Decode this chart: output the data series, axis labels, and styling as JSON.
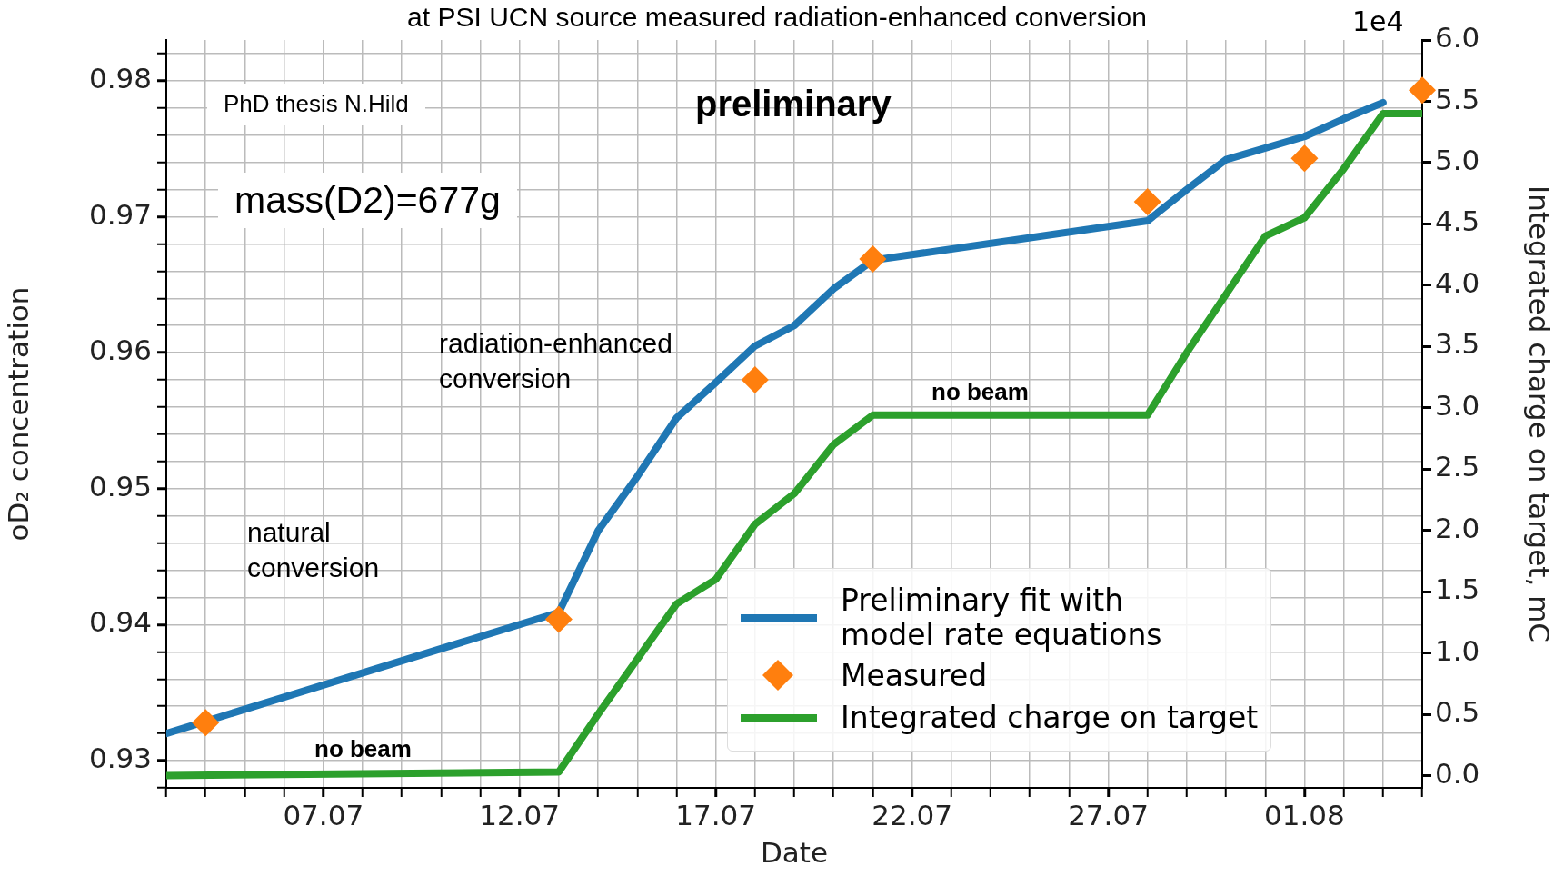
{
  "chart_data": {
    "type": "line",
    "title": "at PSI UCN source measured radiation-enhanced conversion",
    "xlabel": "Date",
    "ylabel": "oD₂ concentration",
    "y2label": "Integrated charge on target, mC",
    "xlim": [
      "--07-03",
      "--08-04"
    ],
    "xticks": [
      {
        "value": "--07-03",
        "label": null
      },
      {
        "value": "--07-04",
        "label": null
      },
      {
        "value": "--07-05",
        "label": null
      },
      {
        "value": "--07-06",
        "label": null
      },
      {
        "value": "--07-07",
        "label": "07.07"
      },
      {
        "value": "--07-08",
        "label": null
      },
      {
        "value": "--07-09",
        "label": null
      },
      {
        "value": "--07-10",
        "label": null
      },
      {
        "value": "--07-11",
        "label": null
      },
      {
        "value": "--07-12",
        "label": "12.07"
      },
      {
        "value": "--07-13",
        "label": null
      },
      {
        "value": "--07-14",
        "label": null
      },
      {
        "value": "--07-15",
        "label": null
      },
      {
        "value": "--07-16",
        "label": null
      },
      {
        "value": "--07-17",
        "label": "17.07"
      },
      {
        "value": "--07-18",
        "label": null
      },
      {
        "value": "--07-19",
        "label": null
      },
      {
        "value": "--07-20",
        "label": null
      },
      {
        "value": "--07-21",
        "label": null
      },
      {
        "value": "--07-22",
        "label": "22.07"
      },
      {
        "value": "--07-23",
        "label": null
      },
      {
        "value": "--07-24",
        "label": null
      },
      {
        "value": "--07-25",
        "label": null
      },
      {
        "value": "--07-26",
        "label": null
      },
      {
        "value": "--07-27",
        "label": "27.07"
      },
      {
        "value": "--07-28",
        "label": null
      },
      {
        "value": "--07-29",
        "label": null
      },
      {
        "value": "--07-30",
        "label": null
      },
      {
        "value": "--07-31",
        "label": null
      },
      {
        "value": "--08-01",
        "label": "01.08"
      },
      {
        "value": "--08-02",
        "label": null
      },
      {
        "value": "--08-03",
        "label": null
      },
      {
        "value": "--08-04",
        "label": null
      }
    ],
    "ylim": [
      0.928,
      0.983
    ],
    "yticks": [
      {
        "value": 0.928,
        "label": null
      },
      0.93,
      {
        "value": 0.932,
        "label": null
      },
      {
        "value": 0.934,
        "label": null
      },
      {
        "value": 0.936,
        "label": null
      },
      {
        "value": 0.938,
        "label": null
      },
      0.94,
      {
        "value": 0.942,
        "label": null
      },
      {
        "value": 0.944,
        "label": null
      },
      {
        "value": 0.946,
        "label": null
      },
      {
        "value": 0.948,
        "label": null
      },
      0.95,
      {
        "value": 0.952,
        "label": null
      },
      {
        "value": 0.954,
        "label": null
      },
      {
        "value": 0.956,
        "label": null
      },
      {
        "value": 0.958,
        "label": null
      },
      0.96,
      {
        "value": 0.962,
        "label": null
      },
      {
        "value": 0.964,
        "label": null
      },
      {
        "value": 0.966,
        "label": null
      },
      {
        "value": 0.968,
        "label": null
      },
      0.97,
      {
        "value": 0.972,
        "label": null
      },
      {
        "value": 0.974,
        "label": null
      },
      {
        "value": 0.976,
        "label": null
      },
      {
        "value": 0.978,
        "label": null
      },
      0.98,
      {
        "value": 0.982,
        "label": null
      }
    ],
    "y2lim": [
      -0.1,
      6.0
    ],
    "y2ticks": [
      {
        "value": 0,
        "label": "0.0"
      },
      {
        "value": 0.5,
        "label": "0.5"
      },
      {
        "value": 1,
        "label": "1.0"
      },
      {
        "value": 1.5,
        "label": "1.5"
      },
      {
        "value": 2,
        "label": "2.0"
      },
      {
        "value": 2.5,
        "label": "2.5"
      },
      {
        "value": 3,
        "label": "3.0"
      },
      {
        "value": 3.5,
        "label": "3.5"
      },
      {
        "value": 4,
        "label": "4.0"
      },
      {
        "value": 4.5,
        "label": "4.5"
      },
      {
        "value": 5,
        "label": "5.0"
      },
      {
        "value": 5.5,
        "label": "5.5"
      },
      {
        "value": 6,
        "label": "6.0"
      }
    ],
    "grid": true,
    "legend": "bottom right",
    "series": [
      {
        "name": "Preliminary fit with model rate equations",
        "type": "line",
        "color": "#1f77b4",
        "marker": "none",
        "x": [
          "--07-03",
          "--07-13",
          "--07-14",
          "--07-15",
          "--07-16",
          "--07-17",
          "--07-18",
          "--07-19",
          "--07-20",
          "--07-21",
          "--07-28",
          "--07-29",
          "--07-30",
          "--08-01",
          "--08-02",
          "--08-03"
        ],
        "values": [
          0.932,
          0.9409,
          0.9469,
          0.9509,
          0.9552,
          0.9578,
          0.9605,
          0.962,
          0.9647,
          0.9668,
          0.9697,
          0.972,
          0.9742,
          0.9759,
          0.9772,
          0.9784
        ]
      },
      {
        "name": "Measured",
        "type": "scatter",
        "color": "#ff7f0e",
        "marker": "diamond",
        "x": [
          "--07-04",
          "--07-13",
          "--07-18",
          "--07-21",
          "--07-28",
          "--08-01",
          "--08-04"
        ],
        "values": [
          0.9328,
          0.9404,
          0.958,
          0.9669,
          0.9711,
          0.9743,
          0.9793
        ]
      },
      {
        "name": "Integrated charge on target",
        "type": "line",
        "color": "#2ca02c",
        "marker": "none",
        "axis": "y2",
        "x": [
          "--07-03",
          "--07-13",
          "--07-14",
          "--07-15",
          "--07-16",
          "--07-17",
          "--07-18",
          "--07-19",
          "--07-20",
          "--07-21",
          "--07-28",
          "--07-29",
          "--07-31",
          "--08-01",
          "--08-02",
          "--08-03",
          "--08-04"
        ],
        "values": [
          0.0,
          0.03,
          0.5,
          0.95,
          1.4,
          1.6,
          2.05,
          2.3,
          2.7,
          2.94,
          2.94,
          3.45,
          4.4,
          4.55,
          4.95,
          5.4,
          5.4
        ]
      }
    ],
    "annotations": [
      "PhD thesis  N.Hild",
      "preliminary",
      "mass(D2)=677g",
      "radiation-enhanced\nconversion",
      "natural\nconversion",
      "no beam",
      "no beam",
      "1e4"
    ]
  }
}
